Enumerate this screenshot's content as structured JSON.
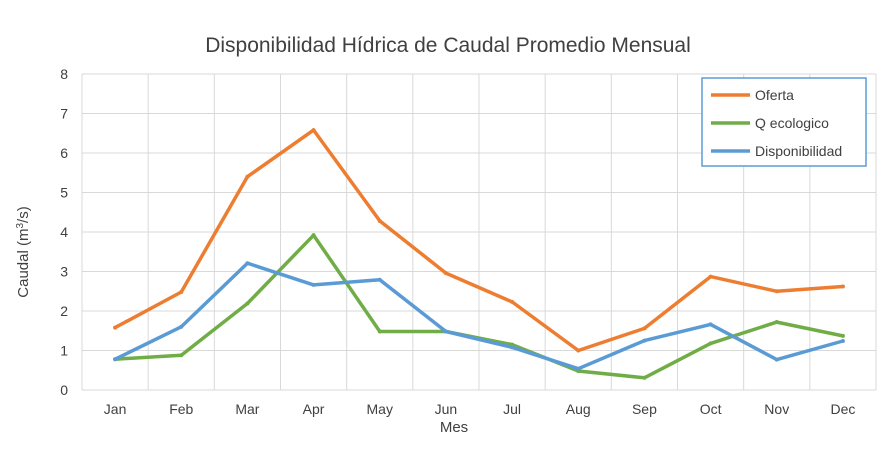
{
  "chart_data": {
    "type": "line",
    "title": "Disponibilidad Hídrica de Caudal Promedio Mensual",
    "xlabel": "Mes",
    "ylabel": "Caudal (m³/s)",
    "ylabel_main": "Caudal (m",
    "ylabel_sup": "3",
    "ylabel_end": "/s)",
    "ylim": [
      0,
      8
    ],
    "yticks": [
      "0",
      "1",
      "2",
      "3",
      "4",
      "5",
      "6",
      "7",
      "8"
    ],
    "grid": true,
    "legend_position": "top-right",
    "categories": [
      "Jan",
      "Feb",
      "Mar",
      "Apr",
      "May",
      "Jun",
      "Jul",
      "Aug",
      "Sep",
      "Oct",
      "Nov",
      "Dec"
    ],
    "series": [
      {
        "name": "Oferta",
        "color": "#ED7D31",
        "values": [
          1.58,
          2.48,
          5.4,
          6.58,
          4.28,
          2.96,
          2.23,
          1.0,
          1.56,
          2.87,
          2.5,
          2.62
        ]
      },
      {
        "name": "Q ecologico",
        "color": "#70AD47",
        "values": [
          0.78,
          0.88,
          2.19,
          3.92,
          1.48,
          1.48,
          1.15,
          0.48,
          0.31,
          1.18,
          1.72,
          1.37
        ]
      },
      {
        "name": "Disponibilidad",
        "color": "#5B9BD5",
        "values": [
          0.78,
          1.6,
          3.21,
          2.66,
          2.79,
          1.48,
          1.08,
          0.54,
          1.25,
          1.66,
          0.77,
          1.24
        ]
      }
    ]
  }
}
